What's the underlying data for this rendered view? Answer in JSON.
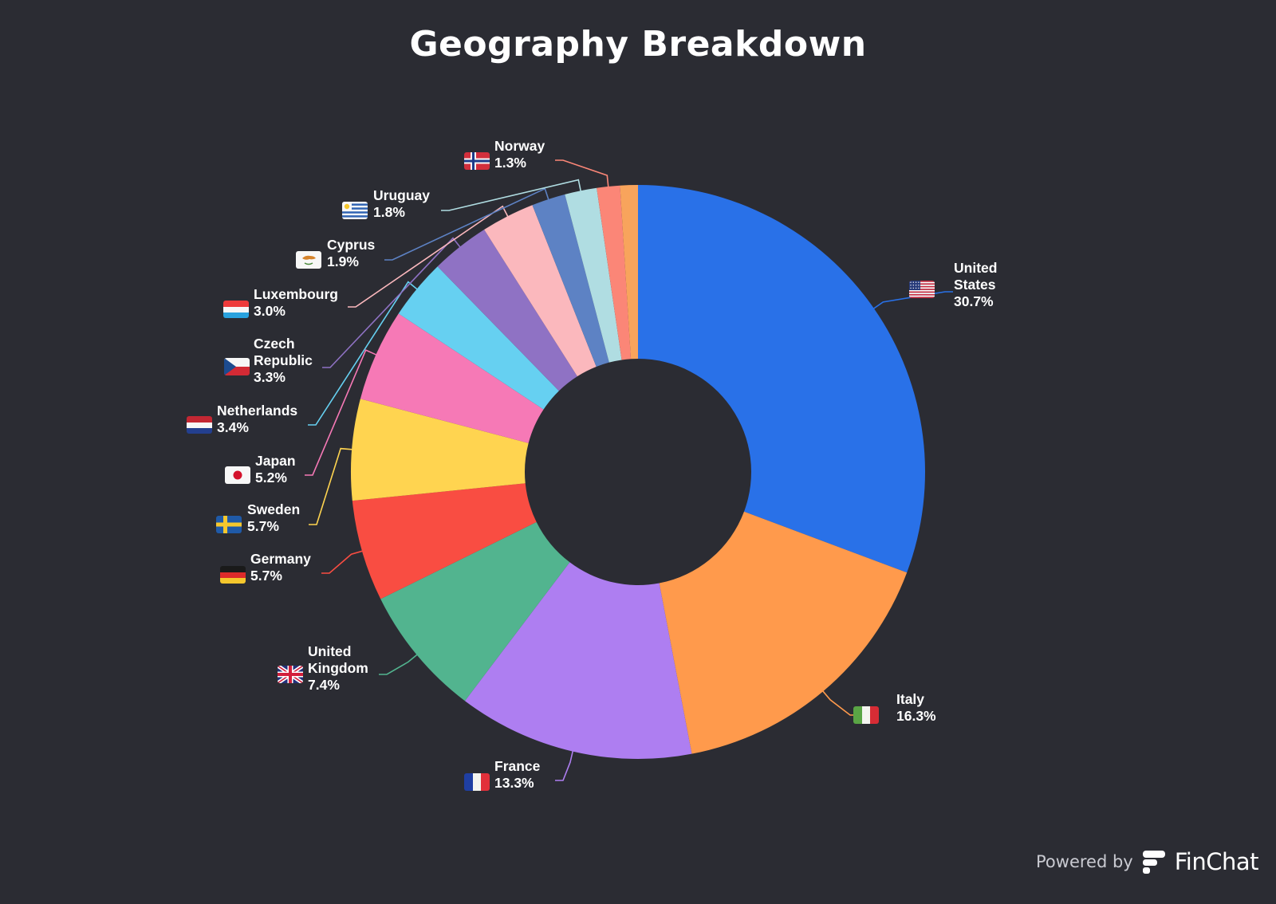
{
  "chart_data": {
    "type": "pie",
    "donut": true,
    "title": "Geography Breakdown",
    "legend": "callout-labels",
    "slices": [
      {
        "label": "United States",
        "value": 30.7,
        "display": "30.7%",
        "color": "#2971e8",
        "flag": "us-flag-icon"
      },
      {
        "label": "Italy",
        "value": 16.3,
        "display": "16.3%",
        "color": "#ff9a4c",
        "flag": "it-flag-icon"
      },
      {
        "label": "France",
        "value": 13.3,
        "display": "13.3%",
        "color": "#ae7ef1",
        "flag": "fr-flag-icon"
      },
      {
        "label": "United Kingdom",
        "value": 7.4,
        "display": "7.4%",
        "color": "#52b48f",
        "flag": "gb-flag-icon"
      },
      {
        "label": "Germany",
        "value": 5.7,
        "display": "5.7%",
        "color": "#f94d42",
        "flag": "de-flag-icon"
      },
      {
        "label": "Sweden",
        "value": 5.7,
        "display": "5.7%",
        "color": "#ffd450",
        "flag": "se-flag-icon"
      },
      {
        "label": "Japan",
        "value": 5.2,
        "display": "5.2%",
        "color": "#f679b6",
        "flag": "jp-flag-icon"
      },
      {
        "label": "Netherlands",
        "value": 3.4,
        "display": "3.4%",
        "color": "#66d0f1",
        "flag": "nl-flag-icon"
      },
      {
        "label": "Czech Republic",
        "value": 3.3,
        "display": "3.3%",
        "color": "#8f72c4",
        "flag": "cz-flag-icon"
      },
      {
        "label": "Luxembourg",
        "value": 3.0,
        "display": "3.0%",
        "color": "#fbb8bd",
        "flag": "lu-flag-icon"
      },
      {
        "label": "Cyprus",
        "value": 1.9,
        "display": "1.9%",
        "color": "#5d82c4",
        "flag": "cy-flag-icon"
      },
      {
        "label": "Uruguay",
        "value": 1.8,
        "display": "1.8%",
        "color": "#b0dde2",
        "flag": "uy-flag-icon"
      },
      {
        "label": "Norway",
        "value": 1.3,
        "display": "1.3%",
        "color": "#fb8677",
        "flag": "no-flag-icon"
      },
      {
        "label": "",
        "value": 1.0,
        "display": "",
        "color": "#f8a45c",
        "flag": ""
      }
    ]
  },
  "footer": {
    "powered_by": "Powered by",
    "brand": "FinChat"
  }
}
